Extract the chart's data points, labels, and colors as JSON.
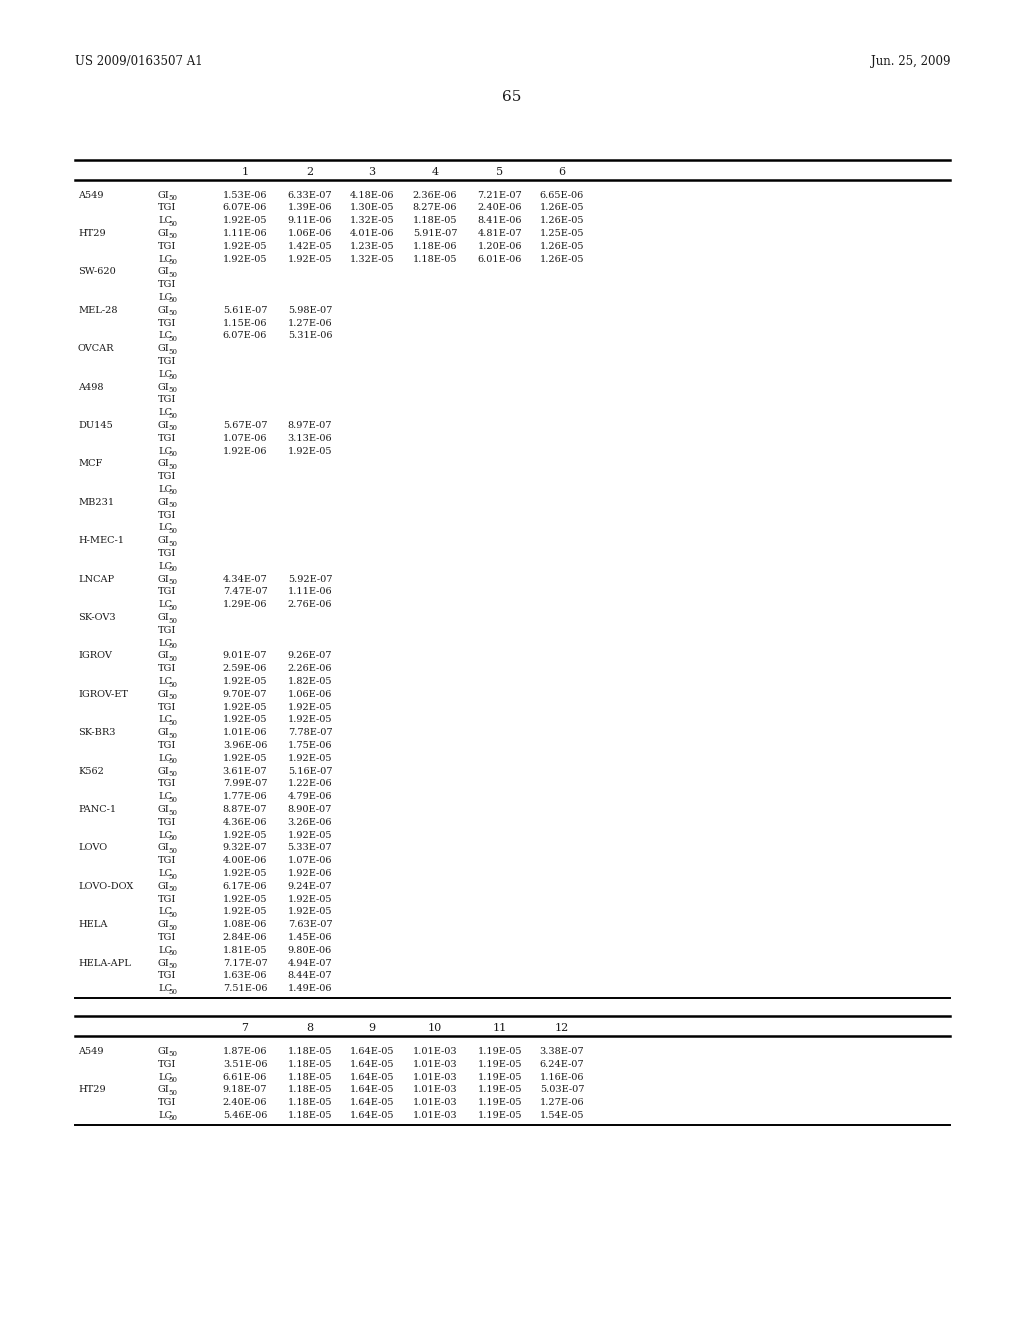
{
  "header_left": "US 2009/0163507 A1",
  "header_right": "Jun. 25, 2009",
  "page_number": "65",
  "table1_col_nums": [
    "1",
    "2",
    "3",
    "4",
    "5",
    "6"
  ],
  "table1_rows": [
    [
      "A549",
      "GI50",
      "1.53E-06",
      "6.33E-07",
      "4.18E-06",
      "2.36E-06",
      "7.21E-07",
      "6.65E-06"
    ],
    [
      "",
      "TGI",
      "6.07E-06",
      "1.39E-06",
      "1.30E-05",
      "8.27E-06",
      "2.40E-06",
      "1.26E-05"
    ],
    [
      "",
      "LC50",
      "1.92E-05",
      "9.11E-06",
      "1.32E-05",
      "1.18E-05",
      "8.41E-06",
      "1.26E-05"
    ],
    [
      "HT29",
      "GI50",
      "1.11E-06",
      "1.06E-06",
      "4.01E-06",
      "5.91E-07",
      "4.81E-07",
      "1.25E-05"
    ],
    [
      "",
      "TGI",
      "1.92E-05",
      "1.42E-05",
      "1.23E-05",
      "1.18E-06",
      "1.20E-06",
      "1.26E-05"
    ],
    [
      "",
      "LC50",
      "1.92E-05",
      "1.92E-05",
      "1.32E-05",
      "1.18E-05",
      "6.01E-06",
      "1.26E-05"
    ],
    [
      "SW-620",
      "GI50",
      "",
      "",
      "",
      "",
      "",
      ""
    ],
    [
      "",
      "TGI",
      "",
      "",
      "",
      "",
      "",
      ""
    ],
    [
      "",
      "LC50",
      "",
      "",
      "",
      "",
      "",
      ""
    ],
    [
      "MEL-28",
      "GI50",
      "5.61E-07",
      "5.98E-07",
      "",
      "",
      "",
      ""
    ],
    [
      "",
      "TGI",
      "1.15E-06",
      "1.27E-06",
      "",
      "",
      "",
      ""
    ],
    [
      "",
      "LC50",
      "6.07E-06",
      "5.31E-06",
      "",
      "",
      "",
      ""
    ],
    [
      "OVCAR",
      "GI50",
      "",
      "",
      "",
      "",
      "",
      ""
    ],
    [
      "",
      "TGI",
      "",
      "",
      "",
      "",
      "",
      ""
    ],
    [
      "",
      "LC50",
      "",
      "",
      "",
      "",
      "",
      ""
    ],
    [
      "A498",
      "GI50",
      "",
      "",
      "",
      "",
      "",
      ""
    ],
    [
      "",
      "TGI",
      "",
      "",
      "",
      "",
      "",
      ""
    ],
    [
      "",
      "LC50",
      "",
      "",
      "",
      "",
      "",
      ""
    ],
    [
      "DU145",
      "GI50",
      "5.67E-07",
      "8.97E-07",
      "",
      "",
      "",
      ""
    ],
    [
      "",
      "TGI",
      "1.07E-06",
      "3.13E-06",
      "",
      "",
      "",
      ""
    ],
    [
      "",
      "LC50",
      "1.92E-06",
      "1.92E-05",
      "",
      "",
      "",
      ""
    ],
    [
      "MCF",
      "GI50",
      "",
      "",
      "",
      "",
      "",
      ""
    ],
    [
      "",
      "TGI",
      "",
      "",
      "",
      "",
      "",
      ""
    ],
    [
      "",
      "LC50",
      "",
      "",
      "",
      "",
      "",
      ""
    ],
    [
      "MB231",
      "GI50",
      "",
      "",
      "",
      "",
      "",
      ""
    ],
    [
      "",
      "TGI",
      "",
      "",
      "",
      "",
      "",
      ""
    ],
    [
      "",
      "LC50",
      "",
      "",
      "",
      "",
      "",
      ""
    ],
    [
      "H-MEC-1",
      "GI50",
      "",
      "",
      "",
      "",
      "",
      ""
    ],
    [
      "",
      "TGI",
      "",
      "",
      "",
      "",
      "",
      ""
    ],
    [
      "",
      "LC50",
      "",
      "",
      "",
      "",
      "",
      ""
    ],
    [
      "LNCAP",
      "GI50",
      "4.34E-07",
      "5.92E-07",
      "",
      "",
      "",
      ""
    ],
    [
      "",
      "TGI",
      "7.47E-07",
      "1.11E-06",
      "",
      "",
      "",
      ""
    ],
    [
      "",
      "LC50",
      "1.29E-06",
      "2.76E-06",
      "",
      "",
      "",
      ""
    ],
    [
      "SK-OV3",
      "GI50",
      "",
      "",
      "",
      "",
      "",
      ""
    ],
    [
      "",
      "TGI",
      "",
      "",
      "",
      "",
      "",
      ""
    ],
    [
      "",
      "LC50",
      "",
      "",
      "",
      "",
      "",
      ""
    ],
    [
      "IGROV",
      "GI50",
      "9.01E-07",
      "9.26E-07",
      "",
      "",
      "",
      ""
    ],
    [
      "",
      "TGI",
      "2.59E-06",
      "2.26E-06",
      "",
      "",
      "",
      ""
    ],
    [
      "",
      "LC50",
      "1.92E-05",
      "1.82E-05",
      "",
      "",
      "",
      ""
    ],
    [
      "IGROV-ET",
      "GI50",
      "9.70E-07",
      "1.06E-06",
      "",
      "",
      "",
      ""
    ],
    [
      "",
      "TGI",
      "1.92E-05",
      "1.92E-05",
      "",
      "",
      "",
      ""
    ],
    [
      "",
      "LC50",
      "1.92E-05",
      "1.92E-05",
      "",
      "",
      "",
      ""
    ],
    [
      "SK-BR3",
      "GI50",
      "1.01E-06",
      "7.78E-07",
      "",
      "",
      "",
      ""
    ],
    [
      "",
      "TGI",
      "3.96E-06",
      "1.75E-06",
      "",
      "",
      "",
      ""
    ],
    [
      "",
      "LC50",
      "1.92E-05",
      "1.92E-05",
      "",
      "",
      "",
      ""
    ],
    [
      "K562",
      "GI50",
      "3.61E-07",
      "5.16E-07",
      "",
      "",
      "",
      ""
    ],
    [
      "",
      "TGI",
      "7.99E-07",
      "1.22E-06",
      "",
      "",
      "",
      ""
    ],
    [
      "",
      "LC50",
      "1.77E-06",
      "4.79E-06",
      "",
      "",
      "",
      ""
    ],
    [
      "PANC-1",
      "GI50",
      "8.87E-07",
      "8.90E-07",
      "",
      "",
      "",
      ""
    ],
    [
      "",
      "TGI",
      "4.36E-06",
      "3.26E-06",
      "",
      "",
      "",
      ""
    ],
    [
      "",
      "LC50",
      "1.92E-05",
      "1.92E-05",
      "",
      "",
      "",
      ""
    ],
    [
      "LOVO",
      "GI50",
      "9.32E-07",
      "5.33E-07",
      "",
      "",
      "",
      ""
    ],
    [
      "",
      "TGI",
      "4.00E-06",
      "1.07E-06",
      "",
      "",
      "",
      ""
    ],
    [
      "",
      "LC50",
      "1.92E-05",
      "1.92E-06",
      "",
      "",
      "",
      ""
    ],
    [
      "LOVO-DOX",
      "GI50",
      "6.17E-06",
      "9.24E-07",
      "",
      "",
      "",
      ""
    ],
    [
      "",
      "TGI",
      "1.92E-05",
      "1.92E-05",
      "",
      "",
      "",
      ""
    ],
    [
      "",
      "LC50",
      "1.92E-05",
      "1.92E-05",
      "",
      "",
      "",
      ""
    ],
    [
      "HELA",
      "GI50",
      "1.08E-06",
      "7.63E-07",
      "",
      "",
      "",
      ""
    ],
    [
      "",
      "TGI",
      "2.84E-06",
      "1.45E-06",
      "",
      "",
      "",
      ""
    ],
    [
      "",
      "LC50",
      "1.81E-05",
      "9.80E-06",
      "",
      "",
      "",
      ""
    ],
    [
      "HELA-APL",
      "GI50",
      "7.17E-07",
      "4.94E-07",
      "",
      "",
      "",
      ""
    ],
    [
      "",
      "TGI",
      "1.63E-06",
      "8.44E-07",
      "",
      "",
      "",
      ""
    ],
    [
      "",
      "LC50",
      "7.51E-06",
      "1.49E-06",
      "",
      "",
      "",
      ""
    ]
  ],
  "table2_col_nums": [
    "7",
    "8",
    "9",
    "10",
    "11",
    "12"
  ],
  "table2_rows": [
    [
      "A549",
      "GI50",
      "1.87E-06",
      "1.18E-05",
      "1.64E-05",
      "1.01E-03",
      "1.19E-05",
      "3.38E-07"
    ],
    [
      "",
      "TGI",
      "3.51E-06",
      "1.18E-05",
      "1.64E-05",
      "1.01E-03",
      "1.19E-05",
      "6.24E-07"
    ],
    [
      "",
      "LC50",
      "6.61E-06",
      "1.18E-05",
      "1.64E-05",
      "1.01E-03",
      "1.19E-05",
      "1.16E-06"
    ],
    [
      "HT29",
      "GI50",
      "9.18E-07",
      "1.18E-05",
      "1.64E-05",
      "1.01E-03",
      "1.19E-05",
      "5.03E-07"
    ],
    [
      "",
      "TGI",
      "2.40E-06",
      "1.18E-05",
      "1.64E-05",
      "1.01E-03",
      "1.19E-05",
      "1.27E-06"
    ],
    [
      "",
      "LC50",
      "5.46E-06",
      "1.18E-05",
      "1.64E-05",
      "1.01E-03",
      "1.19E-05",
      "1.54E-05"
    ]
  ],
  "bg_color": "#ffffff",
  "text_color": "#1a1a1a",
  "font_size": 7.0,
  "header_font_size": 8.5,
  "col_num_font_size": 8.0
}
